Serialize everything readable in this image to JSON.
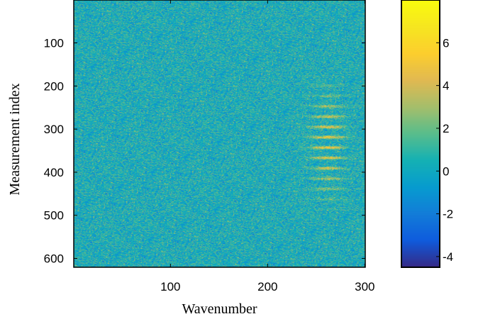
{
  "chart_data": {
    "type": "heatmap",
    "title": "",
    "xlabel": "Wavenumber",
    "ylabel": "Measurement index",
    "xlim": [
      1,
      300
    ],
    "ylim": [
      1,
      620
    ],
    "y_direction": "reverse",
    "x_ticks": [
      "100",
      "200",
      "300"
    ],
    "x_tick_values": [
      100,
      200,
      300
    ],
    "y_ticks": [
      "100",
      "200",
      "300",
      "400",
      "500",
      "600"
    ],
    "y_tick_values": [
      100,
      200,
      300,
      400,
      500,
      600
    ],
    "colormap": "parula",
    "colorbar": {
      "range": [
        -4.5,
        8
      ],
      "ticks": [
        "6",
        "4",
        "2",
        "0",
        "-2",
        "-4"
      ],
      "tick_values": [
        6,
        4,
        2,
        0,
        -2,
        -4
      ]
    },
    "background_value_mean": 0.3,
    "noise_spread": 1.2,
    "signal_feature": {
      "x_center": 262,
      "x_width": 18,
      "y_start": 175,
      "y_end": 490,
      "fringe_period": 24,
      "peak_value": 4.5
    }
  }
}
